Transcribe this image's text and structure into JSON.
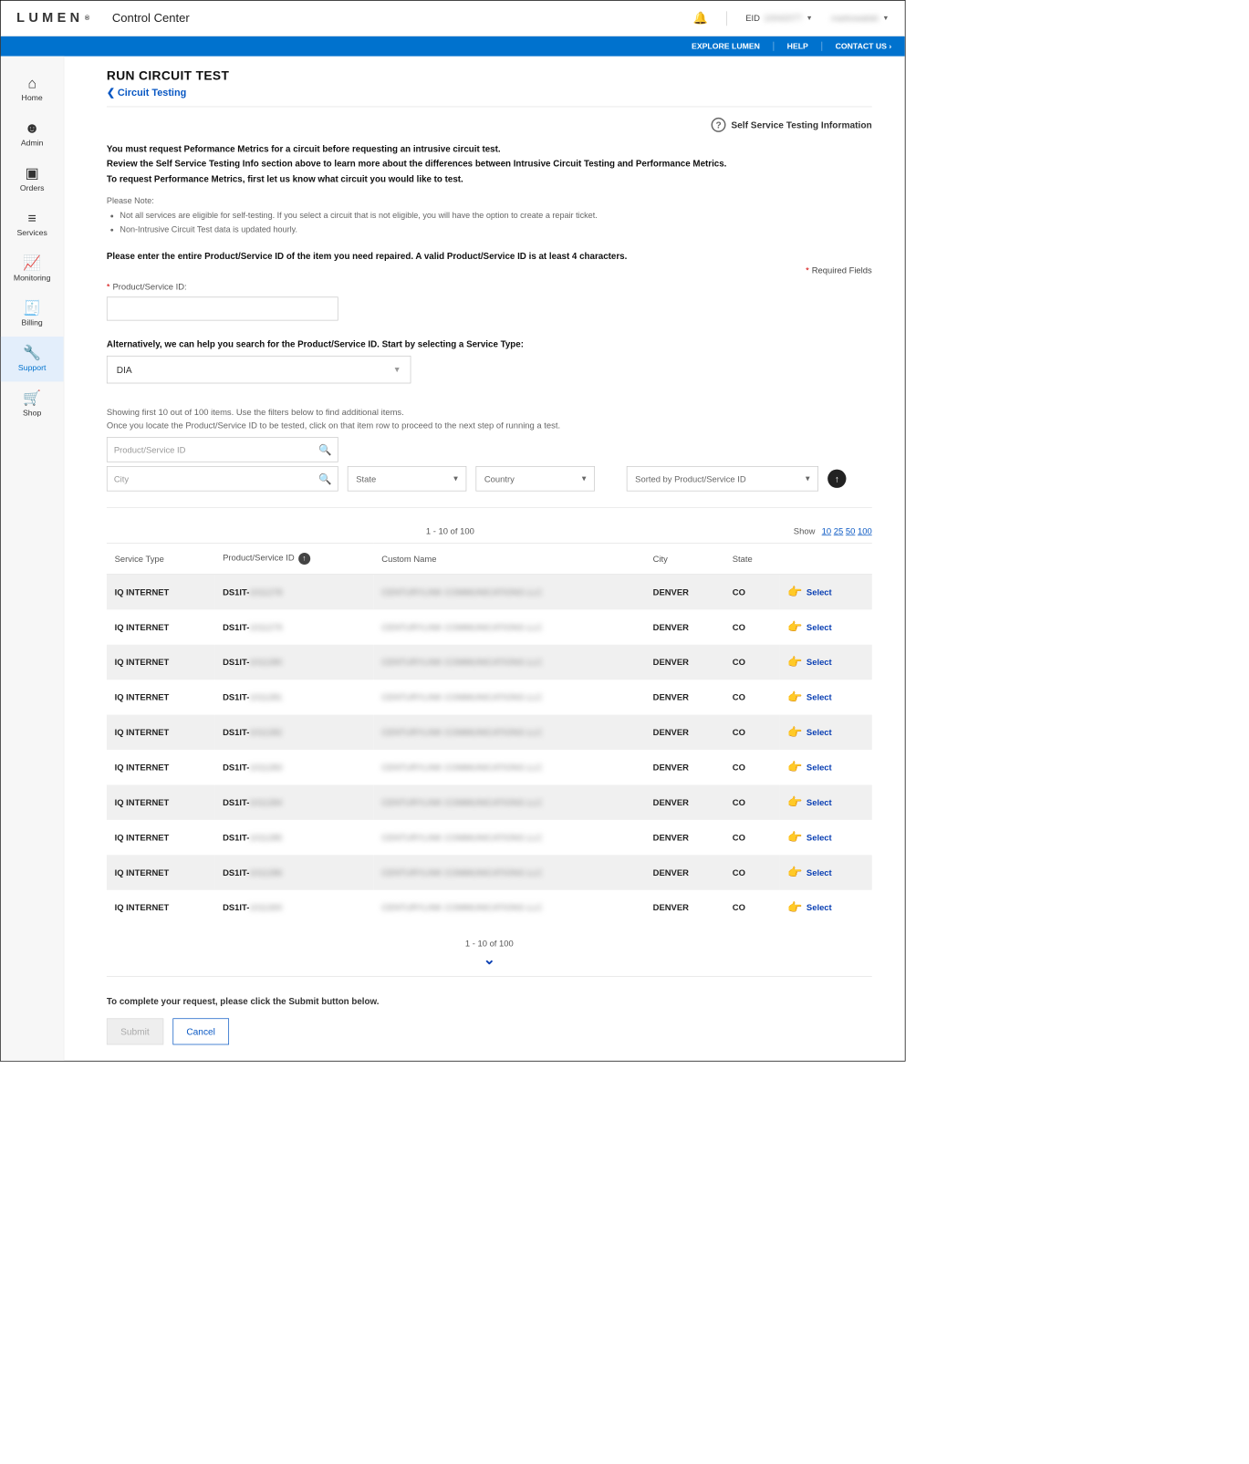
{
  "brand": "LUMEN",
  "app_title": "Control Center",
  "header": {
    "eid_label": "EID",
    "eid_value": "10042077",
    "user_name": "markowalski"
  },
  "bluebar": {
    "explore": "EXPLORE LUMEN",
    "help": "HELP",
    "contact": "CONTACT US ›"
  },
  "sidebar": [
    {
      "icon": "⌂",
      "label": "Home"
    },
    {
      "icon": "☻",
      "label": "Admin"
    },
    {
      "icon": "▣",
      "label": "Orders"
    },
    {
      "icon": "≡",
      "label": "Services"
    },
    {
      "icon": "📈",
      "label": "Monitoring"
    },
    {
      "icon": "🧾",
      "label": "Billing"
    },
    {
      "icon": "🔧",
      "label": "Support",
      "active": true
    },
    {
      "icon": "🛒",
      "label": "Shop"
    }
  ],
  "page": {
    "title": "RUN CIRCUIT TEST",
    "breadcrumb": "Circuit Testing",
    "ss_info": "Self Service Testing Information",
    "intro1": "You must request Peformance Metrics for a circuit before requesting an intrusive circuit test.",
    "intro2": "Review the Self Service Testing Info section above to learn more about the differences between Intrusive Circuit Testing and Performance Metrics.",
    "intro3": "To request Performance Metrics, first let us know what circuit you would like to test.",
    "note_label": "Please Note:",
    "notes": [
      "Not all services are eligible for self-testing. If you select a circuit that is not eligible, you will have the option to create a repair ticket.",
      "Non-Intrusive Circuit Test data is updated hourly."
    ],
    "enter_prompt": "Please enter the entire Product/Service ID of the item you need repaired. A valid Product/Service ID is at least 4 characters.",
    "required_fields": "Required Fields",
    "psid_label": "Product/Service ID:",
    "alt_search": "Alternatively, we can help you search for the Product/Service ID. Start by selecting a Service Type:",
    "service_type_value": "DIA",
    "showing": "Showing first 10 out of 100 items. Use the filters below to find additional items.",
    "locate": "Once you locate the Product/Service ID to be tested, click on that item row to proceed to the next step of running a test.",
    "filters": {
      "psid_ph": "Product/Service ID",
      "city_ph": "City",
      "state_ph": "State",
      "country_ph": "Country",
      "sort_ph": "Sorted by Product/Service ID"
    },
    "range": "1 - 10 of 100",
    "show_label": "Show",
    "show_opts": [
      "10",
      "25",
      "50",
      "100"
    ],
    "cols": {
      "service_type": "Service Type",
      "psid": "Product/Service ID",
      "custom": "Custom Name",
      "city": "City",
      "state": "State"
    },
    "select_label": "Select",
    "rows": [
      {
        "st": "IQ INTERNET",
        "psid_prefix": "DS1IT-",
        "psid_rest": "1011278",
        "custom": "CENTURYLINK COMMUNICATIONS LLC",
        "city": "DENVER",
        "state": "CO"
      },
      {
        "st": "IQ INTERNET",
        "psid_prefix": "DS1IT-",
        "psid_rest": "1011279",
        "custom": "CENTURYLINK COMMUNICATIONS LLC",
        "city": "DENVER",
        "state": "CO"
      },
      {
        "st": "IQ INTERNET",
        "psid_prefix": "DS1IT-",
        "psid_rest": "1011280",
        "custom": "CENTURYLINK COMMUNICATIONS LLC",
        "city": "DENVER",
        "state": "CO"
      },
      {
        "st": "IQ INTERNET",
        "psid_prefix": "DS1IT-",
        "psid_rest": "1011281",
        "custom": "CENTURYLINK COMMUNICATIONS LLC",
        "city": "DENVER",
        "state": "CO"
      },
      {
        "st": "IQ INTERNET",
        "psid_prefix": "DS1IT-",
        "psid_rest": "1011282",
        "custom": "CENTURYLINK COMMUNICATIONS LLC",
        "city": "DENVER",
        "state": "CO"
      },
      {
        "st": "IQ INTERNET",
        "psid_prefix": "DS1IT-",
        "psid_rest": "1011283",
        "custom": "CENTURYLINK COMMUNICATIONS LLC",
        "city": "DENVER",
        "state": "CO"
      },
      {
        "st": "IQ INTERNET",
        "psid_prefix": "DS1IT-",
        "psid_rest": "1011284",
        "custom": "CENTURYLINK COMMUNICATIONS LLC",
        "city": "DENVER",
        "state": "CO"
      },
      {
        "st": "IQ INTERNET",
        "psid_prefix": "DS1IT-",
        "psid_rest": "1011285",
        "custom": "CENTURYLINK COMMUNICATIONS LLC",
        "city": "DENVER",
        "state": "CO"
      },
      {
        "st": "IQ INTERNET",
        "psid_prefix": "DS1IT-",
        "psid_rest": "1011286",
        "custom": "CENTURYLINK COMMUNICATIONS LLC",
        "city": "DENVER",
        "state": "CO"
      },
      {
        "st": "IQ INTERNET",
        "psid_prefix": "DS1IT-",
        "psid_rest": "1011300",
        "custom": "CENTURYLINK COMMUNICATIONS LLC",
        "city": "DENVER",
        "state": "CO"
      }
    ],
    "complete_note": "To complete your request, please click the Submit button below.",
    "submit": "Submit",
    "cancel": "Cancel"
  },
  "colors": {
    "blue_bar": "#0072ce",
    "link_blue": "#0857c3",
    "active_bg": "#e3eefb",
    "border": "#c9c9c9",
    "row_alt": "#f0f0f0"
  }
}
